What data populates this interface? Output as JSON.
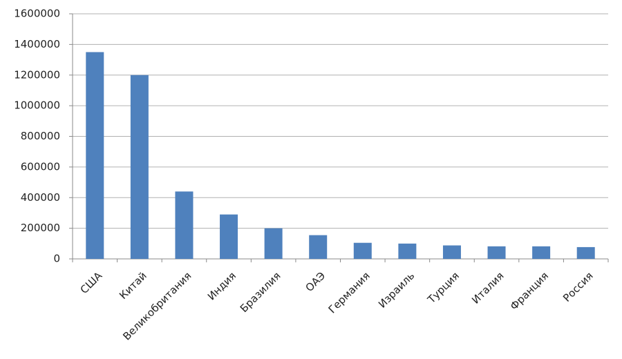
{
  "chart_data": {
    "type": "bar",
    "categories": [
      "США",
      "Китай",
      "Великобритания",
      "Индия",
      "Бразилия",
      "ОАЭ",
      "Германия",
      "Израиль",
      "Турция",
      "Италия",
      "Франция",
      "Россия"
    ],
    "values": [
      1350000,
      1200000,
      440000,
      290000,
      200000,
      155000,
      105000,
      100000,
      88000,
      82000,
      82000,
      77000
    ],
    "color": "#4f81bd",
    "ylim": [
      0,
      1600000
    ],
    "yticks": [
      0,
      200000,
      400000,
      600000,
      800000,
      1000000,
      1200000,
      1400000,
      1600000
    ],
    "grid": true
  }
}
